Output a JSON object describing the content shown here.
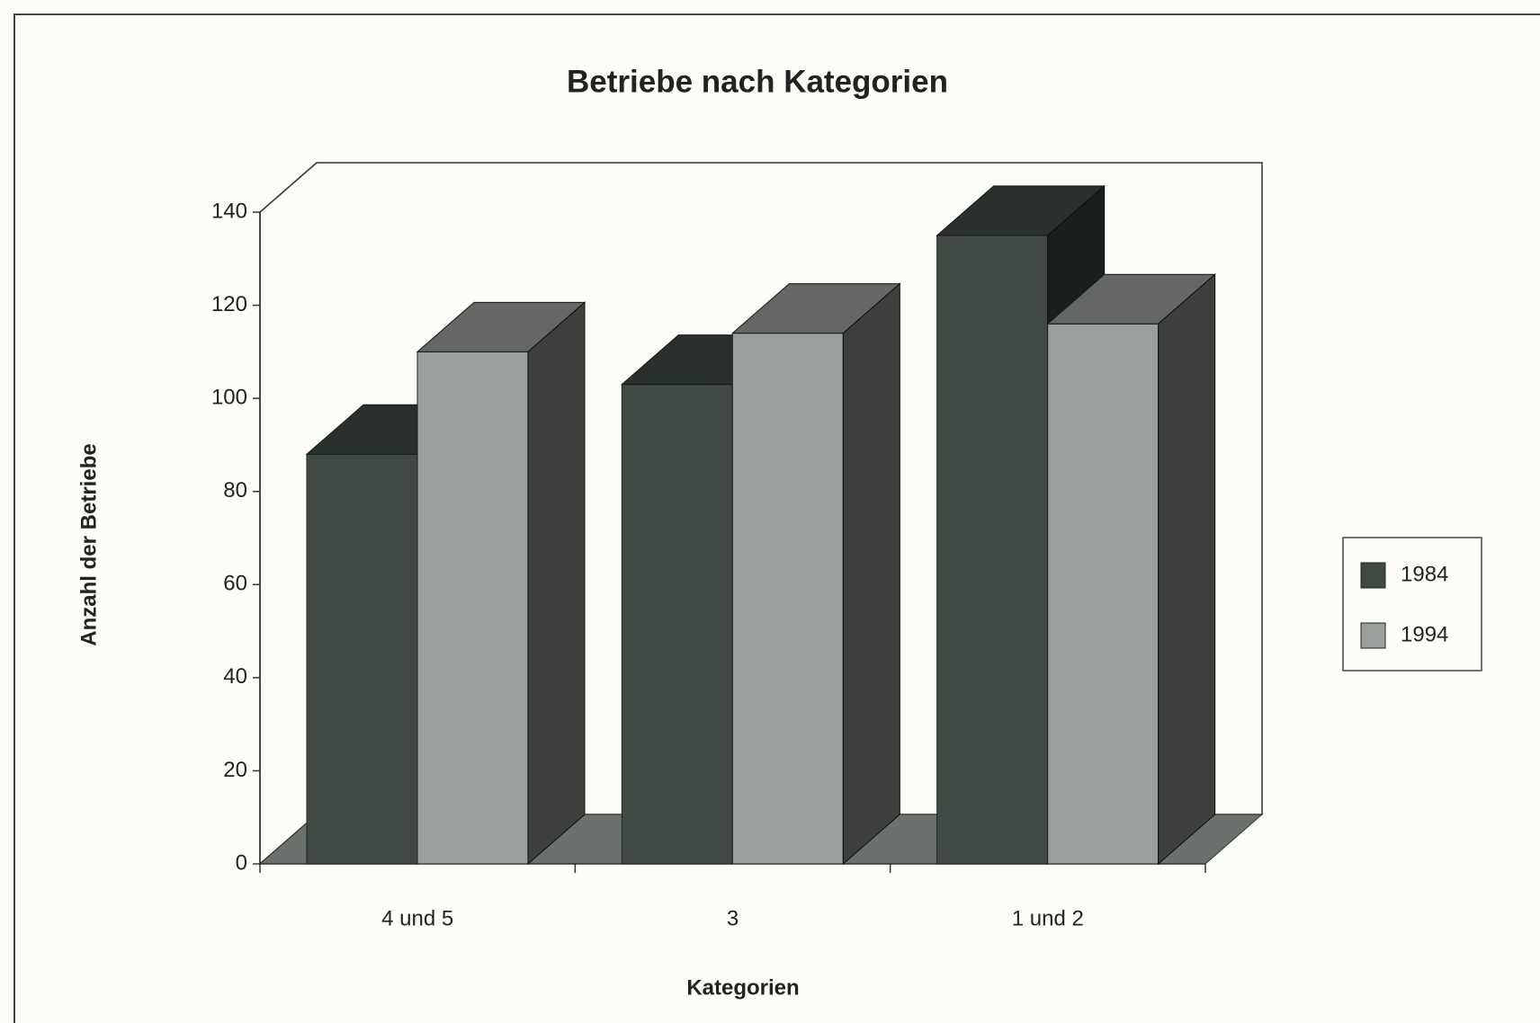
{
  "chart_data": {
    "type": "bar3d",
    "title": "Betriebe nach Kategorien",
    "x_label": "Kategorien",
    "y_label": "Anzahl der Betriebe",
    "categories": [
      "4 und 5",
      "3",
      "1 und 2"
    ],
    "series": [
      {
        "name": "1984",
        "color": "#404a45",
        "values": [
          88,
          103,
          135
        ]
      },
      {
        "name": "1994",
        "color": "#9a9f9b",
        "values": [
          110,
          114,
          116
        ]
      }
    ],
    "ylim": [
      0,
      140
    ],
    "yticks": [
      0,
      20,
      40,
      60,
      80,
      100,
      120,
      140
    ],
    "legend": "right"
  }
}
